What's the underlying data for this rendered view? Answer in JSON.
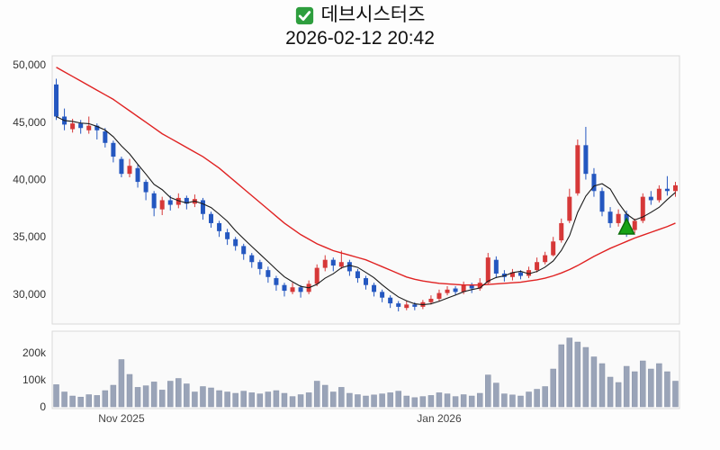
{
  "header": {
    "title": "데브시스터즈",
    "datetime": "2026-02-12 20:42",
    "icons": {
      "title_check": "green-checked-checkbox"
    }
  },
  "chart_data": {
    "type": "candlestick",
    "title": "데브시스터즈",
    "subtitle": "2026-02-12 20:42",
    "legend_position": "none",
    "grid": false,
    "colors": {
      "up": "#d63838",
      "down": "#2457c0",
      "ma_short": "#1a1a1a",
      "ma_long": "#e02222",
      "volume": "#9aa4b8",
      "volume_edge": "#8a94aa",
      "pane_bg": "#fafafa",
      "pane_border": "#d9d9d9",
      "marker_fill": "#17a317",
      "marker_border": "#0a6e0a",
      "check_green": "#2e9e3e"
    },
    "price_axis": {
      "range": [
        27400,
        50800
      ],
      "ticks": [
        {
          "value": 30000,
          "label": "30,000"
        },
        {
          "value": 35000,
          "label": "35,000"
        },
        {
          "value": 40000,
          "label": "40,000"
        },
        {
          "value": 45000,
          "label": "45,000"
        },
        {
          "value": 50000,
          "label": "50,000"
        }
      ]
    },
    "volume_axis": {
      "ticks": [
        {
          "value": 0,
          "label": "0"
        },
        {
          "value": 100000,
          "label": "100k"
        },
        {
          "value": 200000,
          "label": "200k"
        }
      ]
    },
    "x_ticks": [
      {
        "index": 8,
        "label": "Nov 2025"
      },
      {
        "index": 47,
        "label": "Jan 2026"
      }
    ],
    "candles": [
      [
        48300,
        48800,
        45200,
        45500
      ],
      [
        45500,
        46200,
        44300,
        44800
      ],
      [
        44400,
        45300,
        44100,
        44900
      ],
      [
        44900,
        45200,
        44000,
        44500
      ],
      [
        44300,
        45500,
        44000,
        44700
      ],
      [
        44700,
        44900,
        43500,
        44300
      ],
      [
        44200,
        44500,
        42800,
        43200
      ],
      [
        43200,
        43400,
        41500,
        42000
      ],
      [
        41800,
        42000,
        40200,
        40500
      ],
      [
        40500,
        41800,
        40200,
        41200
      ],
      [
        41000,
        41300,
        39300,
        39800
      ],
      [
        39800,
        40000,
        38200,
        38900
      ],
      [
        38800,
        39000,
        36800,
        37500
      ],
      [
        37400,
        38500,
        36900,
        38200
      ],
      [
        38200,
        38600,
        37300,
        37800
      ],
      [
        37800,
        38800,
        37500,
        38400
      ],
      [
        38400,
        38600,
        37400,
        37900
      ],
      [
        37900,
        38700,
        37600,
        38300
      ],
      [
        38200,
        38400,
        36500,
        37000
      ],
      [
        37000,
        37200,
        35800,
        36200
      ],
      [
        36200,
        36400,
        35000,
        35500
      ],
      [
        35400,
        35700,
        34300,
        34800
      ],
      [
        34800,
        35000,
        33800,
        34200
      ],
      [
        34200,
        34400,
        33000,
        33500
      ],
      [
        33400,
        33600,
        32300,
        32800
      ],
      [
        32800,
        33000,
        31700,
        32200
      ],
      [
        32100,
        32400,
        31000,
        31500
      ],
      [
        31400,
        31600,
        30300,
        30800
      ],
      [
        30800,
        31000,
        29800,
        30300
      ],
      [
        30200,
        31000,
        30000,
        30600
      ],
      [
        30600,
        30800,
        29700,
        30200
      ],
      [
        30200,
        31200,
        30000,
        30900
      ],
      [
        30900,
        32600,
        30700,
        32300
      ],
      [
        32300,
        33400,
        32000,
        33000
      ],
      [
        33000,
        33200,
        32000,
        32500
      ],
      [
        32400,
        33800,
        32200,
        32800
      ],
      [
        32800,
        33000,
        31600,
        32000
      ],
      [
        32000,
        32200,
        31000,
        31400
      ],
      [
        31400,
        31600,
        30400,
        30800
      ],
      [
        30800,
        31000,
        29800,
        30200
      ],
      [
        30200,
        30400,
        29300,
        29700
      ],
      [
        29700,
        29900,
        28800,
        29200
      ],
      [
        29200,
        29400,
        28500,
        28900
      ],
      [
        28800,
        29400,
        28600,
        29100
      ],
      [
        29100,
        29300,
        28600,
        28900
      ],
      [
        28900,
        29500,
        28700,
        29300
      ],
      [
        29300,
        29900,
        29100,
        29600
      ],
      [
        29600,
        30400,
        29400,
        30100
      ],
      [
        30100,
        30700,
        29900,
        30400
      ],
      [
        30500,
        30700,
        29900,
        30200
      ],
      [
        30200,
        31100,
        30000,
        30800
      ],
      [
        30800,
        31000,
        30100,
        30500
      ],
      [
        30500,
        31400,
        30300,
        31000
      ],
      [
        31000,
        33600,
        30900,
        33200
      ],
      [
        33000,
        33300,
        31400,
        31800
      ],
      [
        31800,
        32100,
        31100,
        31500
      ],
      [
        31500,
        32200,
        31200,
        31900
      ],
      [
        31900,
        32100,
        31300,
        31600
      ],
      [
        31600,
        32400,
        31400,
        32100
      ],
      [
        32100,
        33200,
        31900,
        32800
      ],
      [
        32800,
        33700,
        32600,
        33400
      ],
      [
        33400,
        35000,
        33300,
        34600
      ],
      [
        34700,
        36600,
        34500,
        36200
      ],
      [
        36400,
        39200,
        36200,
        38500
      ],
      [
        38800,
        43500,
        38600,
        43000
      ],
      [
        43000,
        44600,
        40000,
        40500
      ],
      [
        40500,
        41000,
        38500,
        39000
      ],
      [
        39000,
        39300,
        36800,
        37200
      ],
      [
        37200,
        37600,
        35800,
        36200
      ],
      [
        36200,
        37400,
        35900,
        37000
      ],
      [
        37000,
        37300,
        35000,
        35600
      ],
      [
        35600,
        36600,
        35300,
        36400
      ],
      [
        36400,
        38800,
        36200,
        38500
      ],
      [
        38500,
        39000,
        37800,
        38200
      ],
      [
        38200,
        39500,
        38000,
        39200
      ],
      [
        39200,
        40300,
        38600,
        39000
      ],
      [
        39000,
        39800,
        38500,
        39500
      ]
    ],
    "volumes": [
      82000,
      55000,
      40000,
      36000,
      45000,
      42000,
      60000,
      80000,
      175000,
      120000,
      72000,
      78000,
      92000,
      62000,
      95000,
      105000,
      85000,
      55000,
      75000,
      70000,
      60000,
      55000,
      50000,
      58000,
      52000,
      48000,
      55000,
      60000,
      50000,
      38000,
      45000,
      52000,
      95000,
      80000,
      55000,
      72000,
      50000,
      45000,
      40000,
      44000,
      48000,
      52000,
      58000,
      40000,
      34000,
      38000,
      42000,
      52000,
      48000,
      38000,
      45000,
      40000,
      50000,
      118000,
      88000,
      48000,
      44000,
      40000,
      55000,
      65000,
      75000,
      140000,
      230000,
      255000,
      240000,
      220000,
      185000,
      160000,
      110000,
      90000,
      150000,
      130000,
      170000,
      140000,
      160000,
      130000,
      95000
    ],
    "ma_short": [
      45500,
      45150,
      45070,
      44930,
      44880,
      44640,
      44320,
      43740,
      42940,
      42240,
      41340,
      40480,
      39580,
      39120,
      38440,
      38160,
      37960,
      38120,
      37880,
      37560,
      36980,
      36360,
      35540,
      34840,
      34160,
      33500,
      32840,
      32160,
      31520,
      31080,
      30680,
      30560,
      30860,
      31400,
      31780,
      32300,
      32520,
      32340,
      31900,
      31440,
      30820,
      30260,
      29760,
      29420,
      29160,
      29080,
      29160,
      29380,
      29660,
      29920,
      30220,
      30400,
      30540,
      31140,
      31460,
      31600,
      31880,
      32000,
      31780,
      31980,
      32360,
      32900,
      33820,
      35100,
      37140,
      38560,
      39440,
      39640,
      39180,
      37980,
      37000,
      36480,
      36740,
      37140,
      37580,
      38260,
      38880
    ],
    "ma_long": [
      49800,
      49400,
      49000,
      48600,
      48200,
      47800,
      47400,
      47000,
      46500,
      46000,
      45500,
      45000,
      44500,
      44000,
      43600,
      43200,
      42800,
      42400,
      42000,
      41500,
      41000,
      40400,
      39800,
      39200,
      38600,
      38000,
      37400,
      36800,
      36200,
      35700,
      35200,
      34800,
      34400,
      34100,
      33800,
      33600,
      33400,
      33200,
      33000,
      32700,
      32400,
      32100,
      31800,
      31500,
      31300,
      31150,
      31050,
      30950,
      30900,
      30850,
      30800,
      30800,
      30800,
      30850,
      30900,
      30950,
      31000,
      31050,
      31150,
      31250,
      31400,
      31600,
      31850,
      32150,
      32500,
      32900,
      33300,
      33650,
      34000,
      34300,
      34600,
      34900,
      35150,
      35400,
      35650,
      35900,
      36200
    ],
    "marker": {
      "type": "triangle-up",
      "index": 70,
      "price": 35800
    }
  }
}
